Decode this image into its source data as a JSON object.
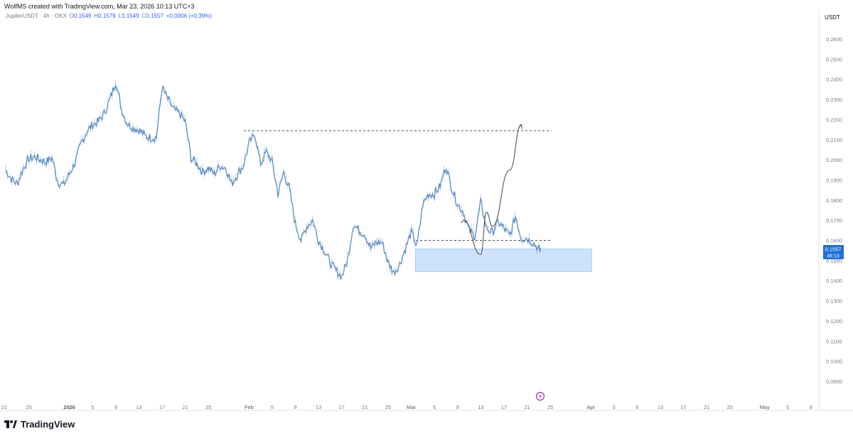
{
  "header": {
    "credit": "WolfMS created with TradingView.com, Mar 23, 2026 10:13 UTC+3"
  },
  "legend": {
    "symbol": "JupiterUSDT · 4h · OKX",
    "open_label": "O",
    "open": "0.1549",
    "high_label": "H",
    "high": "0.1579",
    "low_label": "L",
    "low": "0.1549",
    "close_label": "C",
    "close": "0.1557",
    "change": "+0.0006 (+0.39%)"
  },
  "price_axis": {
    "currency": "USDT",
    "ticks": [
      "0.2600",
      "0.2500",
      "0.2400",
      "0.2300",
      "0.2200",
      "0.2100",
      "0.2000",
      "0.1900",
      "0.1800",
      "0.1700",
      "0.1600",
      "0.1500",
      "0.1400",
      "0.1300",
      "0.1200",
      "0.1100",
      "0.1000",
      "0.0900"
    ]
  },
  "time_axis": {
    "ticks": [
      "21",
      "25",
      "2026",
      "5",
      "9",
      "13",
      "17",
      "21",
      "25",
      "Feb",
      "5",
      "9",
      "13",
      "17",
      "21",
      "25",
      "Mar",
      "5",
      "9",
      "13",
      "17",
      "21",
      "25",
      "Apr",
      "5",
      "9",
      "13",
      "17",
      "21",
      "25",
      "May",
      "5",
      "9"
    ]
  },
  "price_label": {
    "price": "0.1557",
    "countdown": "46:13",
    "color": "#1e70d6"
  },
  "brand": {
    "name": "TradingView"
  },
  "colors": {
    "series": "#5b8cc4",
    "zone_fill": "#cfe2fb",
    "zone_border": "#9cc3f2",
    "dashed_line": "#4a4a4a",
    "projection": "#555555",
    "alert": "#9c27b0"
  },
  "chart_data": {
    "type": "line",
    "symbol": "JupiterUSDT",
    "interval": "4h",
    "exchange": "OKX",
    "ylim": [
      0.085,
      0.265
    ],
    "series": [
      {
        "x": [
          "Dec 21",
          "Dec 22",
          "Dec 23",
          "Dec 24",
          "Dec 25",
          "Dec 26",
          "Dec 27",
          "Dec 28",
          "Dec 29",
          "Dec 30",
          "Dec 31",
          "Jan 1",
          "Jan 2",
          "Jan 3",
          "Jan 4",
          "Jan 5",
          "Jan 6",
          "Jan 7",
          "Jan 8",
          "Jan 9",
          "Jan 10",
          "Jan 11",
          "Jan 12",
          "Jan 13",
          "Jan 14",
          "Jan 15",
          "Jan 16",
          "Jan 17",
          "Jan 18",
          "Jan 19",
          "Jan 20",
          "Jan 21",
          "Jan 22",
          "Jan 23",
          "Jan 24",
          "Jan 25",
          "Jan 26",
          "Jan 27",
          "Jan 28",
          "Jan 29",
          "Jan 30",
          "Jan 31",
          "Feb 1",
          "Feb 2",
          "Feb 3",
          "Feb 4",
          "Feb 5",
          "Feb 6",
          "Feb 7",
          "Feb 8",
          "Feb 9",
          "Feb 10",
          "Feb 11",
          "Feb 12",
          "Feb 13",
          "Feb 14",
          "Feb 15",
          "Feb 16",
          "Feb 17",
          "Feb 18",
          "Feb 19",
          "Feb 20",
          "Feb 21",
          "Feb 22",
          "Feb 23",
          "Feb 24",
          "Feb 25",
          "Feb 26",
          "Feb 27",
          "Feb 28",
          "Mar 1",
          "Mar 2",
          "Mar 3",
          "Mar 4",
          "Mar 5",
          "Mar 6",
          "Mar 7",
          "Mar 8",
          "Mar 9",
          "Mar 10",
          "Mar 11",
          "Mar 12",
          "Mar 13",
          "Mar 14",
          "Mar 15",
          "Mar 16",
          "Mar 17",
          "Mar 18",
          "Mar 19",
          "Mar 20",
          "Mar 21",
          "Mar 22",
          "Mar 23"
        ],
        "values": [
          0.195,
          0.1905,
          0.188,
          0.1955,
          0.2005,
          0.2015,
          0.2,
          0.199,
          0.201,
          0.189,
          0.1875,
          0.193,
          0.199,
          0.208,
          0.214,
          0.2175,
          0.219,
          0.223,
          0.23,
          0.239,
          0.225,
          0.218,
          0.216,
          0.215,
          0.212,
          0.211,
          0.211,
          0.236,
          0.23,
          0.225,
          0.223,
          0.219,
          0.201,
          0.198,
          0.194,
          0.196,
          0.193,
          0.197,
          0.196,
          0.188,
          0.193,
          0.197,
          0.208,
          0.213,
          0.198,
          0.204,
          0.199,
          0.183,
          0.194,
          0.185,
          0.168,
          0.16,
          0.167,
          0.17,
          0.16,
          0.155,
          0.149,
          0.145,
          0.142,
          0.15,
          0.168,
          0.165,
          0.163,
          0.156,
          0.159,
          0.159,
          0.149,
          0.144,
          0.148,
          0.156,
          0.164,
          0.157,
          0.178,
          0.183,
          0.183,
          0.187,
          0.197,
          0.186,
          0.178,
          0.174,
          0.165,
          0.162,
          0.179,
          0.166,
          0.164,
          0.169,
          0.166,
          0.162,
          0.172,
          0.161,
          0.161,
          0.159,
          0.1557
        ]
      }
    ],
    "annotations": [
      {
        "type": "horizontal_dashed",
        "price": 0.2145,
        "from": "Jan 31",
        "to": "Apr 1"
      },
      {
        "type": "horizontal_dashed",
        "price": 0.16,
        "from": "Mar 2",
        "to": "Apr 1"
      },
      {
        "type": "zone",
        "price_top": 0.1557,
        "price_bottom": 0.1445,
        "from": "Mar 1",
        "to": "Apr 2"
      },
      {
        "type": "projection_path",
        "points": [
          [
            "Mar 10",
            0.17
          ],
          [
            "Mar 13",
            0.153
          ],
          [
            "Mar 14",
            0.174
          ],
          [
            "Mar 15",
            0.167
          ],
          [
            "Mar 18",
            0.195
          ],
          [
            "Mar 20",
            0.2175
          ]
        ]
      }
    ]
  }
}
